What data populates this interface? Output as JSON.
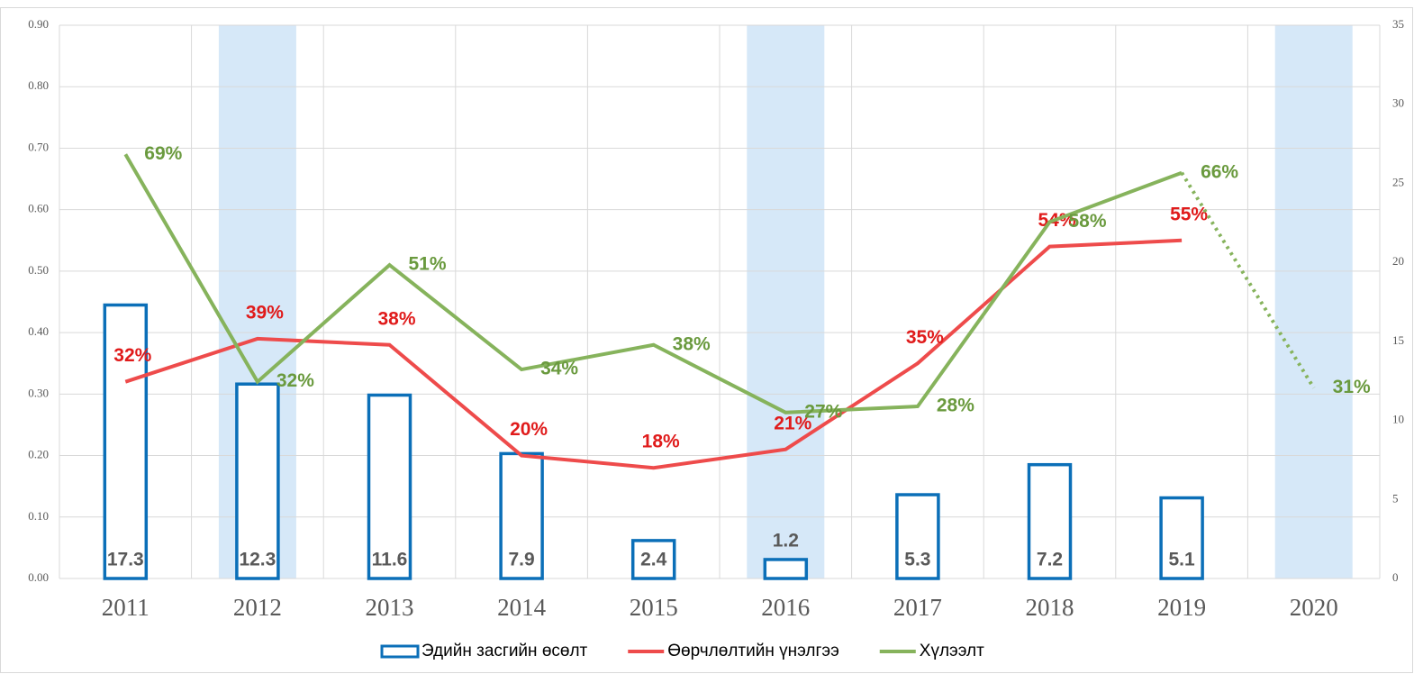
{
  "chart_data": {
    "type": "combo",
    "categories": [
      "2011",
      "2012",
      "2013",
      "2014",
      "2015",
      "2016",
      "2017",
      "2018",
      "2019",
      "2020"
    ],
    "highlight": [
      "2012",
      "2016",
      "2020"
    ],
    "highlight_color": "#d6e8f8",
    "ylim": [
      0,
      0.9
    ],
    "yticks": [
      {
        "value": 0,
        "label": "0.00"
      },
      {
        "value": 0.1,
        "label": "0.10"
      },
      {
        "value": 0.2,
        "label": "0.20"
      },
      {
        "value": 0.3,
        "label": "0.30"
      },
      {
        "value": 0.4,
        "label": "0.40"
      },
      {
        "value": 0.5,
        "label": "0.50"
      },
      {
        "value": 0.6,
        "label": "0.60"
      },
      {
        "value": 0.7,
        "label": "0.70"
      },
      {
        "value": 0.8,
        "label": "0.80"
      },
      {
        "value": 0.9,
        "label": "0.90"
      }
    ],
    "y2lim": [
      0,
      35
    ],
    "y2ticks": [
      0,
      5,
      10,
      15,
      20,
      25,
      30,
      35
    ],
    "grid": true,
    "legend": "bottom",
    "series": [
      {
        "name": "Эдийн засгийн өсөлт",
        "type": "bar",
        "axis": "y2",
        "color": "#0b6fb8",
        "values": [
          17.3,
          12.3,
          11.6,
          7.9,
          2.4,
          1.2,
          5.3,
          7.2,
          5.1,
          null
        ]
      },
      {
        "name": "Өөрчлөлтийн үнэлгээ",
        "type": "line",
        "color": "#ee4b4b",
        "label_color": "#e01b1b",
        "values": [
          0.32,
          0.39,
          0.38,
          0.2,
          0.18,
          0.21,
          0.35,
          0.54,
          0.55,
          null
        ],
        "value_labels": [
          "32%",
          "39%",
          "38%",
          "20%",
          "18%",
          "21%",
          "35%",
          "54%",
          "55%",
          null
        ]
      },
      {
        "name": "Хүлээлт",
        "type": "line",
        "color": "#86b35c",
        "label_color": "#6a9a3e",
        "dotted_last": true,
        "values": [
          0.69,
          0.32,
          0.51,
          0.34,
          0.38,
          0.27,
          0.28,
          0.58,
          0.66,
          0.31
        ],
        "value_labels": [
          "69%",
          "32%",
          "51%",
          "34%",
          "38%",
          "27%",
          "28%",
          "58%",
          "66%",
          "31%"
        ]
      }
    ]
  }
}
